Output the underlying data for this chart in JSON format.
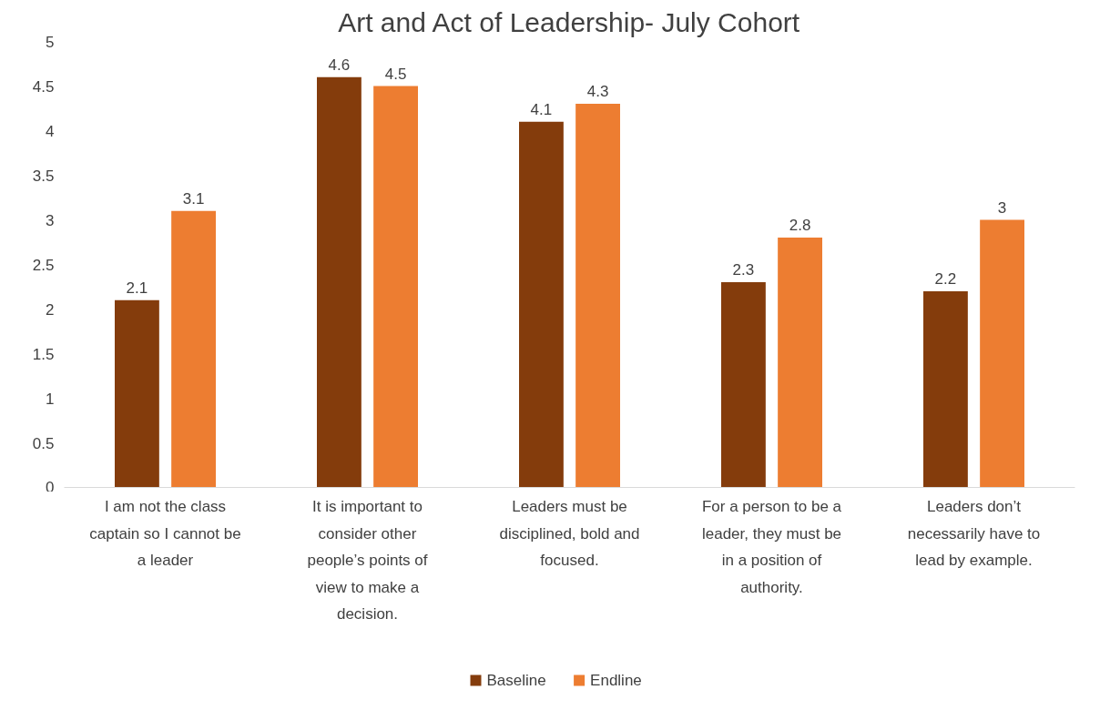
{
  "chart_data": {
    "type": "bar",
    "title": "Art and Act of Leadership- July Cohort",
    "categories": [
      "I am not the class captain so I cannot be a leader",
      "It is important to consider other people’s points of view to make a decision.",
      "Leaders must be disciplined, bold and focused.",
      "For a person to be a leader, they must be in a position of authority.",
      "Leaders don’t necessarily have to lead by example."
    ],
    "series": [
      {
        "name": "Baseline",
        "color": "#843c0c",
        "values": [
          2.1,
          4.6,
          4.1,
          2.3,
          2.2
        ]
      },
      {
        "name": "Endline",
        "color": "#ed7d31",
        "values": [
          3.1,
          4.5,
          4.3,
          2.8,
          3
        ]
      }
    ],
    "ylim": [
      0,
      5
    ],
    "yticks": [
      0,
      0.5,
      1,
      1.5,
      2,
      2.5,
      3,
      3.5,
      4,
      4.5,
      5
    ],
    "grid": false,
    "legend": "bottom",
    "data_labels": true
  }
}
